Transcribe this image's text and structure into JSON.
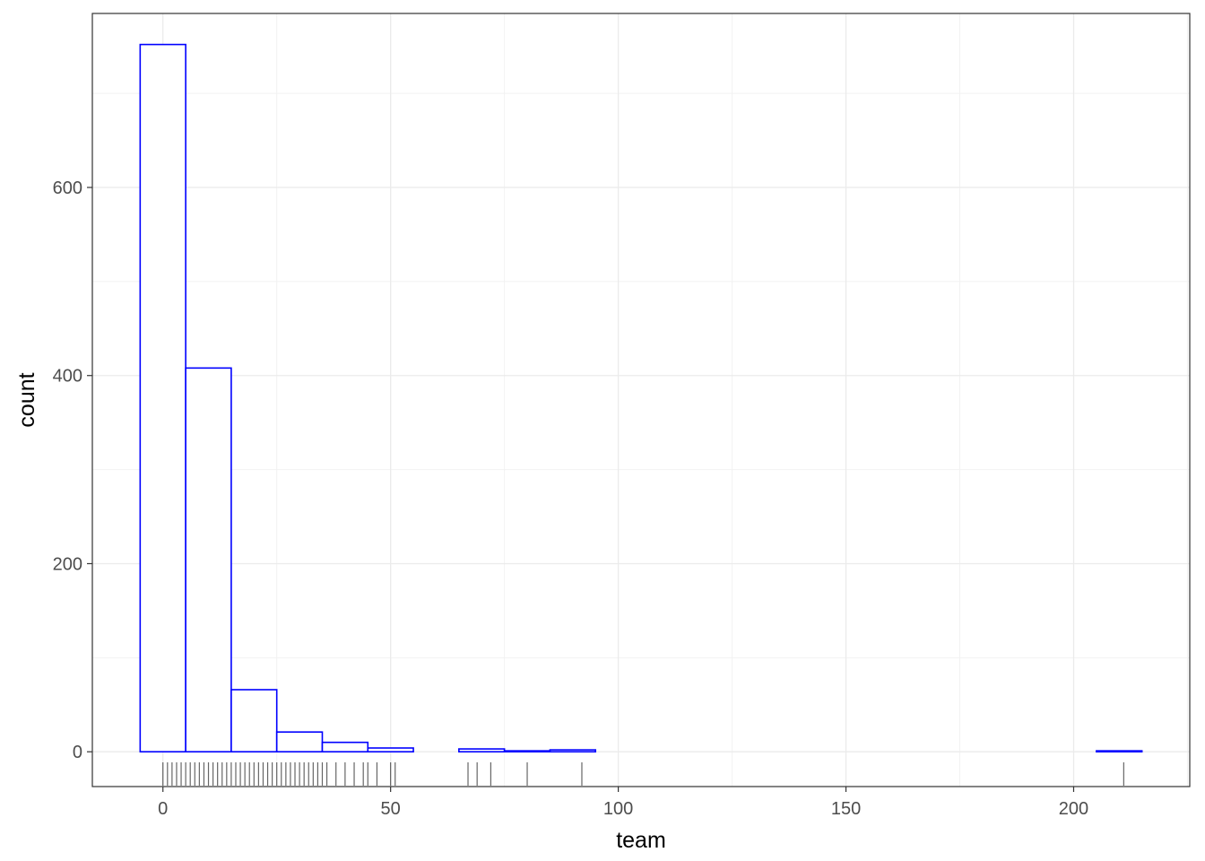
{
  "chart_data": {
    "type": "bar",
    "subtype": "histogram",
    "xlabel": "team",
    "ylabel": "count",
    "xlim": [
      -15.5,
      225.5
    ],
    "ylim": [
      -37,
      785
    ],
    "x_breaks": [
      0,
      50,
      100,
      150,
      200
    ],
    "x_tick_labels": [
      "0",
      "50",
      "100",
      "150",
      "200"
    ],
    "y_breaks": [
      0,
      200,
      400,
      600
    ],
    "y_tick_labels": [
      "0",
      "200",
      "400",
      "600"
    ],
    "bin_width": 10,
    "bins": [
      {
        "x0": -5,
        "x1": 5,
        "count": 752
      },
      {
        "x0": 5,
        "x1": 15,
        "count": 408
      },
      {
        "x0": 15,
        "x1": 25,
        "count": 66
      },
      {
        "x0": 25,
        "x1": 35,
        "count": 21
      },
      {
        "x0": 35,
        "x1": 45,
        "count": 10
      },
      {
        "x0": 45,
        "x1": 55,
        "count": 4
      },
      {
        "x0": 55,
        "x1": 65,
        "count": 0
      },
      {
        "x0": 65,
        "x1": 75,
        "count": 3
      },
      {
        "x0": 75,
        "x1": 85,
        "count": 1
      },
      {
        "x0": 85,
        "x1": 95,
        "count": 2
      },
      {
        "x0": 95,
        "x1": 105,
        "count": 0
      },
      {
        "x0": 105,
        "x1": 115,
        "count": 0
      },
      {
        "x0": 115,
        "x1": 125,
        "count": 0
      },
      {
        "x0": 125,
        "x1": 135,
        "count": 0
      },
      {
        "x0": 135,
        "x1": 145,
        "count": 0
      },
      {
        "x0": 145,
        "x1": 155,
        "count": 0
      },
      {
        "x0": 155,
        "x1": 165,
        "count": 0
      },
      {
        "x0": 165,
        "x1": 175,
        "count": 0
      },
      {
        "x0": 175,
        "x1": 185,
        "count": 0
      },
      {
        "x0": 185,
        "x1": 195,
        "count": 0
      },
      {
        "x0": 195,
        "x1": 205,
        "count": 0
      },
      {
        "x0": 205,
        "x1": 215,
        "count": 1
      }
    ],
    "rug_x": [
      0,
      1,
      2,
      3,
      4,
      5,
      6,
      7,
      8,
      9,
      10,
      11,
      12,
      13,
      14,
      15,
      16,
      17,
      18,
      19,
      20,
      21,
      22,
      23,
      24,
      25,
      26,
      27,
      28,
      29,
      30,
      31,
      32,
      33,
      34,
      35,
      36,
      38,
      40,
      42,
      44,
      45,
      47,
      50,
      51,
      67,
      69,
      72,
      80,
      92,
      211
    ],
    "bar_outline_color": "#0000ff",
    "bar_fill_color": "#ffffff",
    "rug_color": "#000000",
    "grid": true,
    "theme": "bw"
  }
}
